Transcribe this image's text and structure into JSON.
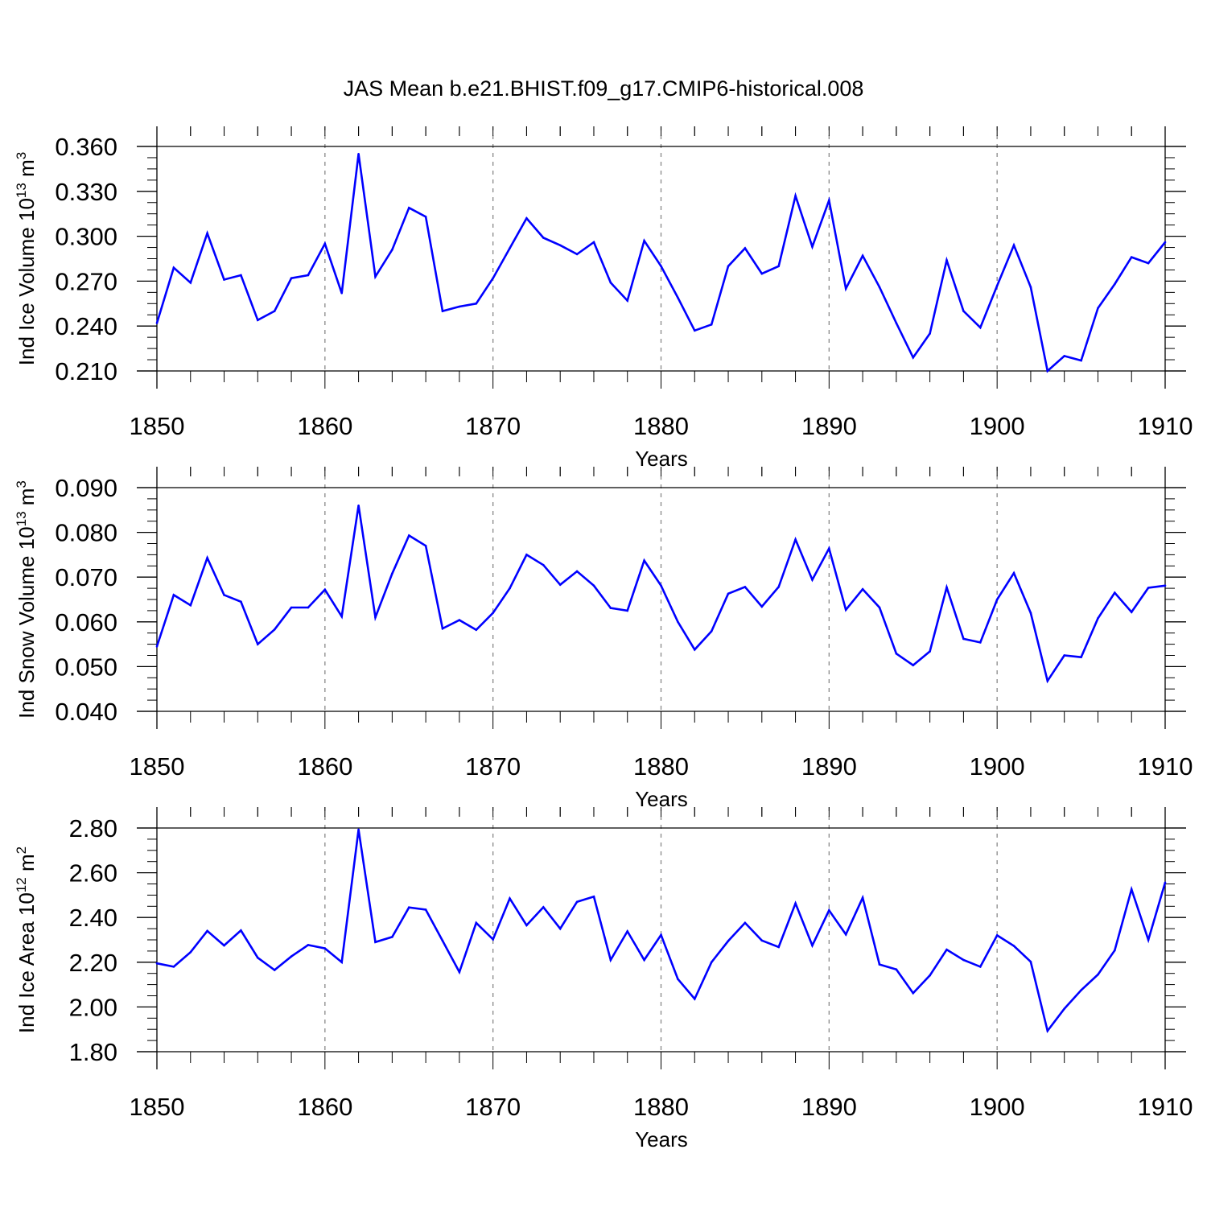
{
  "title": "JAS Mean b.e21.BHIST.f09_g17.CMIP6-historical.008",
  "line_color": "#0000ff",
  "chart_data": [
    {
      "type": "line",
      "ylabel": "Ind Ice Volume 10",
      "ylabel_exp": "13",
      "ylabel_unit": " m",
      "ylabel_unit_exp": "3",
      "xlabel": "Years",
      "xlim": [
        1850,
        1910
      ],
      "ylim": [
        0.21,
        0.36
      ],
      "yticks": [
        "0.210",
        "0.240",
        "0.270",
        "0.300",
        "0.330",
        "0.360"
      ],
      "xticks": [
        "1850",
        "1860",
        "1870",
        "1880",
        "1890",
        "1900",
        "1910"
      ],
      "x": [
        1850,
        1851,
        1852,
        1853,
        1854,
        1855,
        1856,
        1857,
        1858,
        1859,
        1860,
        1861,
        1862,
        1863,
        1864,
        1865,
        1866,
        1867,
        1868,
        1869,
        1870,
        1871,
        1872,
        1873,
        1874,
        1875,
        1876,
        1877,
        1878,
        1879,
        1880,
        1881,
        1882,
        1883,
        1884,
        1885,
        1886,
        1887,
        1888,
        1889,
        1890,
        1891,
        1892,
        1893,
        1894,
        1895,
        1896,
        1897,
        1898,
        1899,
        1900,
        1901,
        1902,
        1903,
        1904,
        1905,
        1906,
        1907,
        1908,
        1909,
        1910
      ],
      "values": [
        0.242,
        0.279,
        0.269,
        0.302,
        0.271,
        0.274,
        0.244,
        0.25,
        0.272,
        0.274,
        0.295,
        0.262,
        0.355,
        0.273,
        0.291,
        0.319,
        0.313,
        0.25,
        0.253,
        0.255,
        0.272,
        0.292,
        0.312,
        0.299,
        0.294,
        0.288,
        0.296,
        0.269,
        0.257,
        0.297,
        0.28,
        0.259,
        0.237,
        0.241,
        0.28,
        0.292,
        0.275,
        0.28,
        0.327,
        0.293,
        0.324,
        0.265,
        0.287,
        0.266,
        0.242,
        0.219,
        0.235,
        0.284,
        0.25,
        0.239,
        0.267,
        0.294,
        0.266,
        0.21,
        0.22,
        0.217,
        0.252,
        0.268,
        0.286,
        0.282,
        0.296
      ]
    },
    {
      "type": "line",
      "ylabel": "Ind Snow Volume 10",
      "ylabel_exp": "13",
      "ylabel_unit": " m",
      "ylabel_unit_exp": "3",
      "xlabel": "Years",
      "xlim": [
        1850,
        1910
      ],
      "ylim": [
        0.04,
        0.09
      ],
      "yticks": [
        "0.040",
        "0.050",
        "0.060",
        "0.070",
        "0.080",
        "0.090"
      ],
      "xticks": [
        "1850",
        "1860",
        "1870",
        "1880",
        "1890",
        "1900",
        "1910"
      ],
      "x": [
        1850,
        1851,
        1852,
        1853,
        1854,
        1855,
        1856,
        1857,
        1858,
        1859,
        1860,
        1861,
        1862,
        1863,
        1864,
        1865,
        1866,
        1867,
        1868,
        1869,
        1870,
        1871,
        1872,
        1873,
        1874,
        1875,
        1876,
        1877,
        1878,
        1879,
        1880,
        1881,
        1882,
        1883,
        1884,
        1885,
        1886,
        1887,
        1888,
        1889,
        1890,
        1891,
        1892,
        1893,
        1894,
        1895,
        1896,
        1897,
        1898,
        1899,
        1900,
        1901,
        1902,
        1903,
        1904,
        1905,
        1906,
        1907,
        1908,
        1909,
        1910
      ],
      "values": [
        0.0545,
        0.066,
        0.0637,
        0.0743,
        0.066,
        0.0645,
        0.055,
        0.0583,
        0.0632,
        0.0632,
        0.0672,
        0.0612,
        0.086,
        0.061,
        0.0708,
        0.0793,
        0.077,
        0.0585,
        0.0604,
        0.0582,
        0.062,
        0.0675,
        0.075,
        0.0727,
        0.0683,
        0.0713,
        0.0681,
        0.0631,
        0.0625,
        0.0737,
        0.0681,
        0.06,
        0.0538,
        0.0579,
        0.0663,
        0.0678,
        0.0634,
        0.0678,
        0.0784,
        0.0694,
        0.0764,
        0.0627,
        0.0673,
        0.0632,
        0.0529,
        0.0503,
        0.0534,
        0.0677,
        0.0562,
        0.0554,
        0.065,
        0.0709,
        0.062,
        0.0468,
        0.0525,
        0.0521,
        0.0608,
        0.0665,
        0.0622,
        0.0676,
        0.0681
      ]
    },
    {
      "type": "line",
      "ylabel": "Ind Ice Area 10",
      "ylabel_exp": "12",
      "ylabel_unit": " m",
      "ylabel_unit_exp": "2",
      "xlabel": "Years",
      "xlim": [
        1850,
        1910
      ],
      "ylim": [
        1.8,
        2.8
      ],
      "yticks": [
        "1.80",
        "2.00",
        "2.20",
        "2.40",
        "2.60",
        "2.80"
      ],
      "xticks": [
        "1850",
        "1860",
        "1870",
        "1880",
        "1890",
        "1900",
        "1910"
      ],
      "x": [
        1850,
        1851,
        1852,
        1853,
        1854,
        1855,
        1856,
        1857,
        1858,
        1859,
        1860,
        1861,
        1862,
        1863,
        1864,
        1865,
        1866,
        1867,
        1868,
        1869,
        1870,
        1871,
        1872,
        1873,
        1874,
        1875,
        1876,
        1877,
        1878,
        1879,
        1880,
        1881,
        1882,
        1883,
        1884,
        1885,
        1886,
        1887,
        1888,
        1889,
        1890,
        1891,
        1892,
        1893,
        1894,
        1895,
        1896,
        1897,
        1898,
        1899,
        1900,
        1901,
        1902,
        1903,
        1904,
        1905,
        1906,
        1907,
        1908,
        1909,
        1910
      ],
      "values": [
        2.195,
        2.18,
        2.245,
        2.34,
        2.275,
        2.342,
        2.22,
        2.165,
        2.226,
        2.277,
        2.262,
        2.2,
        2.793,
        2.29,
        2.313,
        2.445,
        2.435,
        2.296,
        2.156,
        2.376,
        2.302,
        2.485,
        2.365,
        2.446,
        2.35,
        2.47,
        2.493,
        2.21,
        2.338,
        2.21,
        2.322,
        2.125,
        2.036,
        2.2,
        2.295,
        2.376,
        2.297,
        2.268,
        2.463,
        2.275,
        2.432,
        2.324,
        2.488,
        2.19,
        2.168,
        2.062,
        2.141,
        2.256,
        2.21,
        2.18,
        2.32,
        2.273,
        2.202,
        1.893,
        1.992,
        2.075,
        2.145,
        2.253,
        2.526,
        2.3,
        2.556
      ]
    }
  ]
}
